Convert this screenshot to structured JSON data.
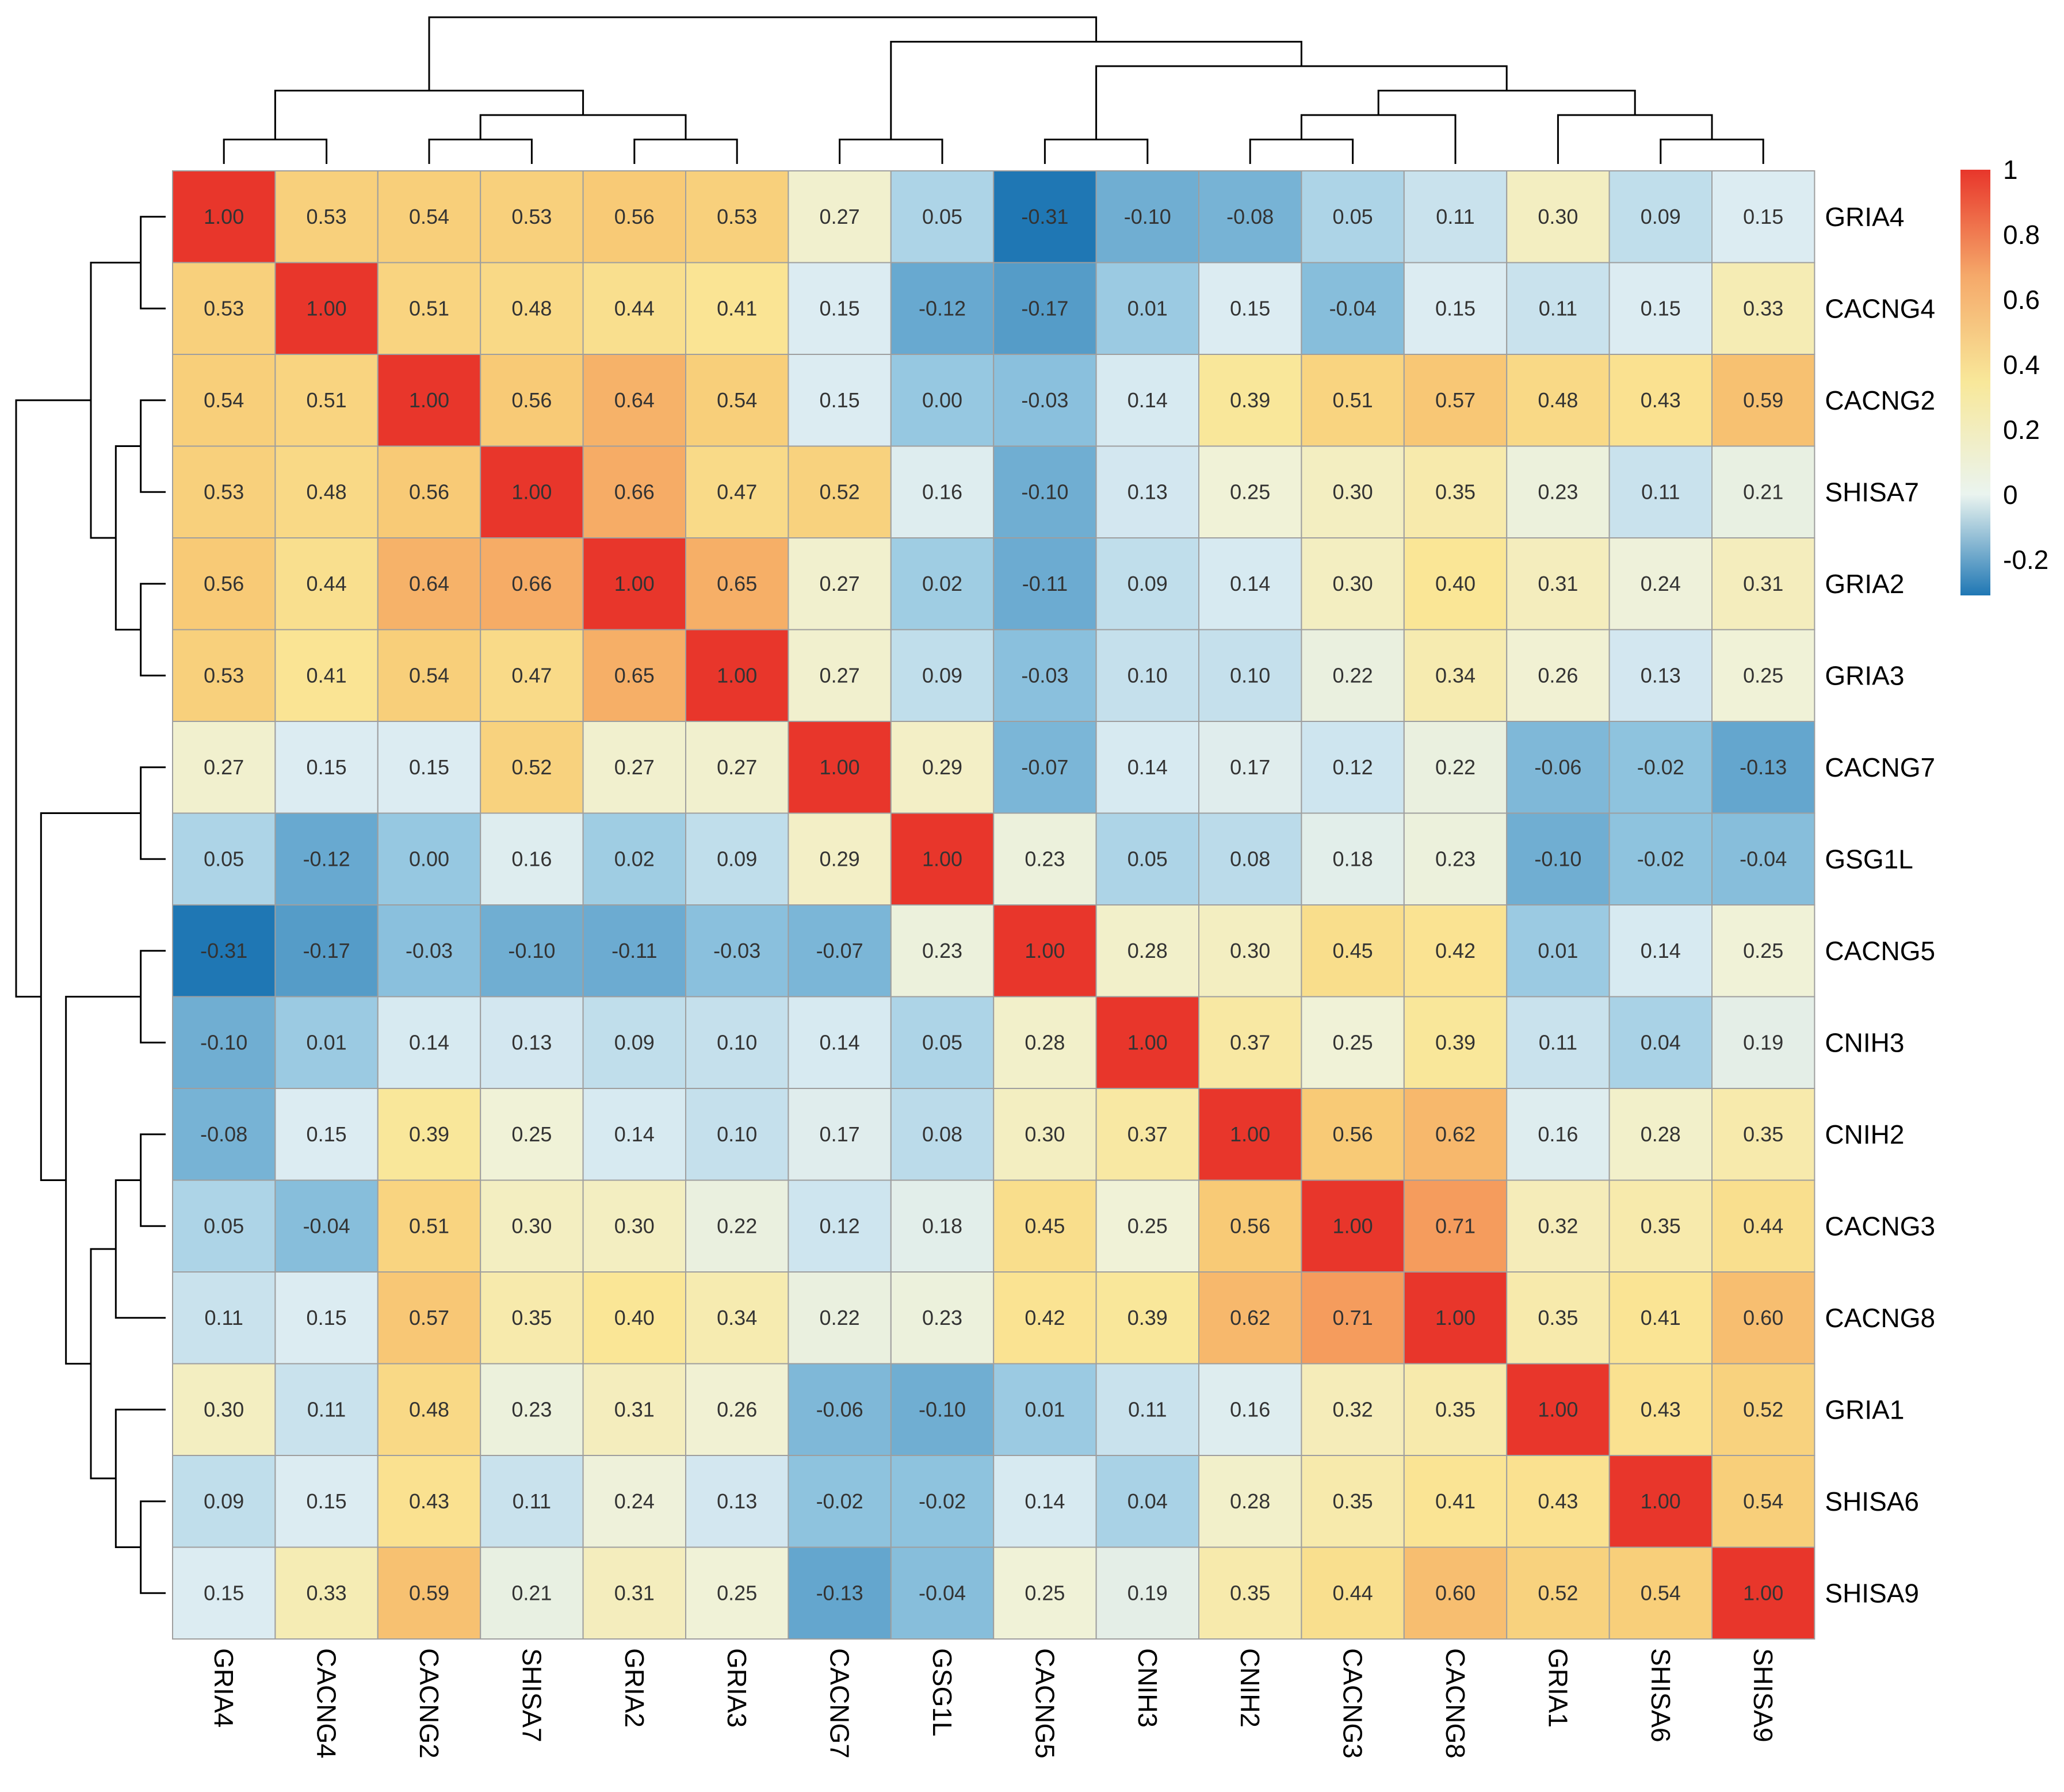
{
  "chart_data": {
    "type": "heatmap",
    "labels": [
      "GRIA4",
      "CACNG4",
      "CACNG2",
      "SHISA7",
      "GRIA2",
      "GRIA3",
      "CACNG7",
      "GSG1L",
      "CACNG5",
      "CNIH3",
      "CNIH2",
      "CACNG3",
      "CACNG8",
      "GRIA1",
      "SHISA6",
      "SHISA9"
    ],
    "values": [
      [
        1.0,
        0.53,
        0.54,
        0.53,
        0.56,
        0.53,
        0.27,
        0.05,
        -0.31,
        -0.1,
        -0.08,
        0.05,
        0.11,
        0.3,
        0.09,
        0.15
      ],
      [
        0.53,
        1.0,
        0.51,
        0.48,
        0.44,
        0.41,
        0.15,
        -0.12,
        -0.17,
        0.01,
        0.15,
        -0.04,
        0.15,
        0.11,
        0.15,
        0.33
      ],
      [
        0.54,
        0.51,
        1.0,
        0.56,
        0.64,
        0.54,
        0.15,
        0.0,
        -0.03,
        0.14,
        0.39,
        0.51,
        0.57,
        0.48,
        0.43,
        0.59
      ],
      [
        0.53,
        0.48,
        0.56,
        1.0,
        0.66,
        0.47,
        0.52,
        0.16,
        -0.1,
        0.13,
        0.25,
        0.3,
        0.35,
        0.23,
        0.11,
        0.21
      ],
      [
        0.56,
        0.44,
        0.64,
        0.66,
        1.0,
        0.65,
        0.27,
        0.02,
        -0.11,
        0.09,
        0.14,
        0.3,
        0.4,
        0.31,
        0.24,
        0.31
      ],
      [
        0.53,
        0.41,
        0.54,
        0.47,
        0.65,
        1.0,
        0.27,
        0.09,
        -0.03,
        0.1,
        0.1,
        0.22,
        0.34,
        0.26,
        0.13,
        0.25
      ],
      [
        0.27,
        0.15,
        0.15,
        0.52,
        0.27,
        0.27,
        1.0,
        0.29,
        -0.07,
        0.14,
        0.17,
        0.12,
        0.22,
        -0.06,
        -0.02,
        -0.13
      ],
      [
        0.05,
        -0.12,
        0.0,
        0.16,
        0.02,
        0.09,
        0.29,
        1.0,
        0.23,
        0.05,
        0.08,
        0.18,
        0.23,
        -0.1,
        -0.02,
        -0.04
      ],
      [
        -0.31,
        -0.17,
        -0.03,
        -0.1,
        -0.11,
        -0.03,
        -0.07,
        0.23,
        1.0,
        0.28,
        0.3,
        0.45,
        0.42,
        0.01,
        0.14,
        0.25
      ],
      [
        -0.1,
        0.01,
        0.14,
        0.13,
        0.09,
        0.1,
        0.14,
        0.05,
        0.28,
        1.0,
        0.37,
        0.25,
        0.39,
        0.11,
        0.04,
        0.19
      ],
      [
        -0.08,
        0.15,
        0.39,
        0.25,
        0.14,
        0.1,
        0.17,
        0.08,
        0.3,
        0.37,
        1.0,
        0.56,
        0.62,
        0.16,
        0.28,
        0.35
      ],
      [
        0.05,
        -0.04,
        0.51,
        0.3,
        0.3,
        0.22,
        0.12,
        0.18,
        0.45,
        0.25,
        0.56,
        1.0,
        0.71,
        0.32,
        0.35,
        0.44
      ],
      [
        0.11,
        0.15,
        0.57,
        0.35,
        0.4,
        0.34,
        0.22,
        0.23,
        0.42,
        0.39,
        0.62,
        0.71,
        1.0,
        0.35,
        0.41,
        0.6
      ],
      [
        0.3,
        0.11,
        0.48,
        0.23,
        0.31,
        0.26,
        -0.06,
        -0.1,
        0.01,
        0.11,
        0.16,
        0.32,
        0.35,
        1.0,
        0.43,
        0.52
      ],
      [
        0.09,
        0.15,
        0.43,
        0.11,
        0.24,
        0.13,
        -0.02,
        -0.02,
        0.14,
        0.04,
        0.28,
        0.35,
        0.41,
        0.43,
        1.0,
        0.54
      ],
      [
        0.15,
        0.33,
        0.59,
        0.21,
        0.31,
        0.25,
        -0.13,
        -0.04,
        0.25,
        0.19,
        0.35,
        0.44,
        0.6,
        0.52,
        0.54,
        1.0
      ]
    ],
    "value_range": [
      -0.31,
      1.0
    ],
    "legend": {
      "ticks": [
        "1",
        "0.8",
        "0.6",
        "0.4",
        "0.2",
        "0",
        "-0.2"
      ],
      "tick_values": [
        1,
        0.8,
        0.6,
        0.4,
        0.2,
        0,
        -0.2
      ],
      "placement": "top-right"
    },
    "dendrogram": {
      "placement": [
        "top",
        "left"
      ],
      "tree": [
        [
          [
            0,
            1
          ],
          [
            [
              2,
              3
            ],
            [
              4,
              5
            ]
          ]
        ],
        [
          [
            6,
            7
          ],
          [
            [
              8,
              9
            ],
            [
              [
                [
                  10,
                  11
                ],
                12
              ],
              [
                13,
                [
                  14,
                  15
                ]
              ]
            ]
          ]
        ]
      ]
    },
    "colors": {
      "low": "#1f77b4",
      "mid": "#eaf4ef",
      "high": "#e8362b",
      "cell_border": "#9e9e9e"
    }
  }
}
